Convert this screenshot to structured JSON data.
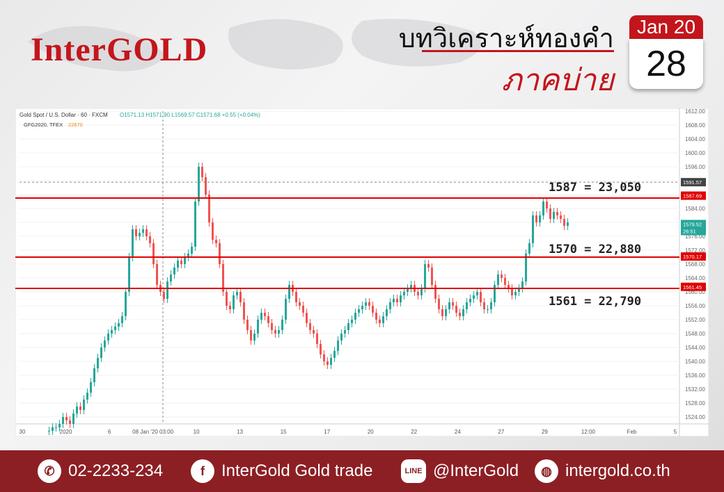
{
  "header": {
    "brand": "InterGOLD",
    "title_th": "บทวิเคราะห์ทองคำ",
    "subtitle_th": "ภาคบ่าย",
    "calendar_month": "Jan 20",
    "calendar_day": "28"
  },
  "colors": {
    "brand_red": "#c3161c",
    "footer_bg": "#8c1f24",
    "candle_up": "#26a69a",
    "candle_down": "#ef5350",
    "level_line": "#e00000"
  },
  "chart_data": {
    "type": "candlestick",
    "title": "Gold Spot / U.S. Dollar · 60 · FXCM",
    "ohlc_readout": {
      "O": "1571.13",
      "H": "1571.90",
      "L": "1569.57",
      "C": "1571.68",
      "change": "+0.55 (+0.04%)"
    },
    "secondary_symbol": {
      "name": "GFG2020, TFEX",
      "value": "22670"
    },
    "ylim": [
      1522,
      1612
    ],
    "yticks": [
      1524,
      1528,
      1532,
      1536,
      1540,
      1544,
      1548,
      1552,
      1556,
      1560,
      1564,
      1568,
      1572,
      1576,
      1580,
      1584,
      1588,
      1592,
      1596,
      1600,
      1604,
      1608,
      1612
    ],
    "xticks": [
      "30",
      "2020",
      "6",
      "08 Jan '20  03:00",
      "10",
      "13",
      "15",
      "17",
      "20",
      "22",
      "24",
      "27",
      "29",
      "12:00",
      "Feb",
      "5"
    ],
    "price_labels": [
      "1591.57",
      "1587.69",
      "1579.52",
      "26:51",
      "1570.17",
      "1561.45"
    ],
    "levels": [
      {
        "price": 1587,
        "label": "1587 = 23,050"
      },
      {
        "price": 1570,
        "label": "1570 = 22,880"
      },
      {
        "price": 1561,
        "label": "1561 = 22,790"
      }
    ],
    "crosshair_price": 1591.57,
    "series": [
      {
        "values": [
          1520,
          1521,
          1521,
          1522,
          1524,
          1523,
          1522,
          1525,
          1527,
          1526,
          1529,
          1531,
          1534,
          1538,
          1541,
          1544,
          1546,
          1548,
          1549,
          1550,
          1551,
          1553,
          1560,
          1570,
          1578,
          1576,
          1577,
          1578,
          1576,
          1574,
          1568,
          1562,
          1560,
          1558,
          1563,
          1565,
          1567,
          1569,
          1568,
          1570,
          1571,
          1573,
          1586,
          1596,
          1593,
          1588,
          1580,
          1575,
          1574,
          1568,
          1560,
          1556,
          1555,
          1559,
          1560,
          1557,
          1552,
          1549,
          1546,
          1548,
          1552,
          1554,
          1553,
          1551,
          1549,
          1548,
          1549,
          1552,
          1558,
          1562,
          1560,
          1557,
          1556,
          1554,
          1551,
          1549,
          1548,
          1545,
          1542,
          1540,
          1539,
          1541,
          1543,
          1546,
          1548,
          1549,
          1551,
          1552,
          1554,
          1555,
          1556,
          1557,
          1556,
          1554,
          1552,
          1551,
          1553,
          1555,
          1557,
          1558,
          1557,
          1559,
          1560,
          1561,
          1562,
          1560,
          1559,
          1561,
          1568,
          1567,
          1562,
          1558,
          1555,
          1553,
          1555,
          1557,
          1556,
          1554,
          1553,
          1555,
          1557,
          1558,
          1559,
          1560,
          1557,
          1555,
          1555,
          1557,
          1562,
          1565,
          1564,
          1562,
          1561,
          1559,
          1560,
          1561,
          1563,
          1571,
          1574,
          1582,
          1580,
          1582,
          1586,
          1584,
          1581,
          1583,
          1582,
          1581,
          1579,
          1580
        ]
      }
    ]
  },
  "footer": {
    "phone": "02-2233-234",
    "facebook": "InterGold Gold trade",
    "line": "@InterGold",
    "website": "intergold.co.th",
    "line_icon_text": "LINE"
  }
}
